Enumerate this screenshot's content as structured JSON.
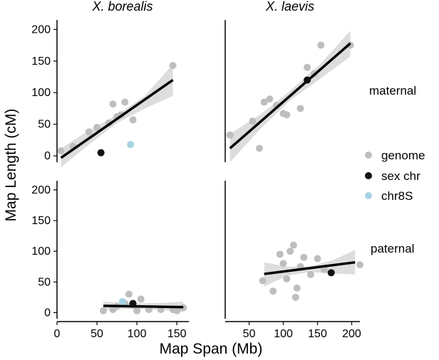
{
  "chart_data": {
    "type": "scatter",
    "layout": "faceted 2x2",
    "x_axis_title": "Map Span (Mb)",
    "y_axis_title": "Map Length (cM)",
    "columns": [
      "X. borealis",
      "X. laevis"
    ],
    "rows": [
      "maternal",
      "paternal"
    ],
    "ylim": [
      -10,
      215
    ],
    "y_ticks": [
      "0",
      "50",
      "100",
      "150",
      "200"
    ],
    "x_axes": [
      {
        "xlim": [
          0,
          165
        ],
        "ticks": [
          0,
          50,
          100,
          150
        ],
        "tick_labels": [
          "0",
          "50",
          "100",
          "150"
        ]
      },
      {
        "xlim": [
          15,
          212
        ],
        "ticks": [
          50,
          100,
          150,
          200
        ],
        "tick_labels": [
          "50",
          "100",
          "150",
          "200"
        ]
      }
    ],
    "legend": [
      {
        "label": "genome",
        "color": "#bebebe"
      },
      {
        "label": "sex chr",
        "color": "#111111"
      },
      {
        "label": "chr8S",
        "color": "#a6d4e3"
      }
    ],
    "panels": [
      {
        "column": "X. borealis",
        "row": "maternal",
        "genome": [
          [
            5,
            8
          ],
          [
            20,
            15
          ],
          [
            40,
            38
          ],
          [
            50,
            45
          ],
          [
            65,
            52
          ],
          [
            70,
            82
          ],
          [
            75,
            62
          ],
          [
            80,
            65
          ],
          [
            85,
            85
          ],
          [
            95,
            57
          ],
          [
            145,
            143
          ]
        ],
        "sex_chr": [
          [
            55,
            5
          ]
        ],
        "chr8S": [
          [
            92,
            18
          ]
        ],
        "fit": {
          "x": [
            5,
            145
          ],
          "y": [
            -3,
            120
          ]
        },
        "band_upper": [
          [
            5,
            12
          ],
          [
            40,
            40
          ],
          [
            75,
            65
          ],
          [
            110,
            95
          ],
          [
            145,
            145
          ]
        ],
        "band_lower": [
          [
            5,
            -18
          ],
          [
            40,
            18
          ],
          [
            75,
            52
          ],
          [
            110,
            75
          ],
          [
            145,
            95
          ]
        ]
      },
      {
        "column": "X. laevis",
        "row": "maternal",
        "genome": [
          [
            22,
            33
          ],
          [
            55,
            55
          ],
          [
            65,
            12
          ],
          [
            72,
            85
          ],
          [
            80,
            90
          ],
          [
            90,
            80
          ],
          [
            100,
            67
          ],
          [
            105,
            65
          ],
          [
            125,
            75
          ],
          [
            135,
            140
          ],
          [
            145,
            130
          ],
          [
            155,
            175
          ],
          [
            198,
            175
          ]
        ],
        "sex_chr": [
          [
            135,
            120
          ]
        ],
        "chr8S": [],
        "fit": {
          "x": [
            22,
            198
          ],
          "y": [
            12,
            178
          ]
        },
        "band_upper": [
          [
            22,
            35
          ],
          [
            66,
            65
          ],
          [
            110,
            103
          ],
          [
            154,
            145
          ],
          [
            198,
            198
          ]
        ],
        "band_lower": [
          [
            22,
            -10
          ],
          [
            66,
            42
          ],
          [
            110,
            88
          ],
          [
            154,
            122
          ],
          [
            198,
            157
          ]
        ]
      },
      {
        "column": "X. borealis",
        "row": "paternal",
        "genome": [
          [
            58,
            3
          ],
          [
            70,
            5
          ],
          [
            75,
            10
          ],
          [
            85,
            15
          ],
          [
            90,
            30
          ],
          [
            95,
            12
          ],
          [
            100,
            3
          ],
          [
            105,
            22
          ],
          [
            115,
            5
          ],
          [
            130,
            5
          ],
          [
            145,
            5
          ],
          [
            150,
            3
          ],
          [
            158,
            8
          ]
        ],
        "sex_chr": [
          [
            95,
            15
          ]
        ],
        "chr8S": [
          [
            82,
            18
          ]
        ],
        "fit": {
          "x": [
            58,
            158
          ],
          "y": [
            11,
            9
          ]
        },
        "band_upper": [
          [
            58,
            18
          ],
          [
            83,
            16
          ],
          [
            108,
            15
          ],
          [
            133,
            16
          ],
          [
            158,
            18
          ]
        ],
        "band_lower": [
          [
            58,
            4
          ],
          [
            83,
            6
          ],
          [
            108,
            6
          ],
          [
            133,
            4
          ],
          [
            158,
            1
          ]
        ]
      },
      {
        "column": "X. laevis",
        "row": "paternal",
        "genome": [
          [
            70,
            52
          ],
          [
            85,
            35
          ],
          [
            95,
            95
          ],
          [
            100,
            80
          ],
          [
            105,
            55
          ],
          [
            110,
            100
          ],
          [
            115,
            110
          ],
          [
            118,
            25
          ],
          [
            120,
            40
          ],
          [
            125,
            75
          ],
          [
            130,
            90
          ],
          [
            140,
            62
          ],
          [
            150,
            88
          ],
          [
            160,
            70
          ],
          [
            212,
            78
          ]
        ],
        "sex_chr": [
          [
            170,
            65
          ]
        ],
        "chr8S": [],
        "fit": {
          "x": [
            72,
            205
          ],
          "y": [
            63,
            82
          ]
        },
        "band_upper": [
          [
            72,
            82
          ],
          [
            105,
            75
          ],
          [
            138,
            75
          ],
          [
            171,
            85
          ],
          [
            205,
            102
          ]
        ],
        "band_lower": [
          [
            72,
            42
          ],
          [
            105,
            60
          ],
          [
            138,
            66
          ],
          [
            171,
            64
          ],
          [
            205,
            62
          ]
        ]
      }
    ]
  }
}
